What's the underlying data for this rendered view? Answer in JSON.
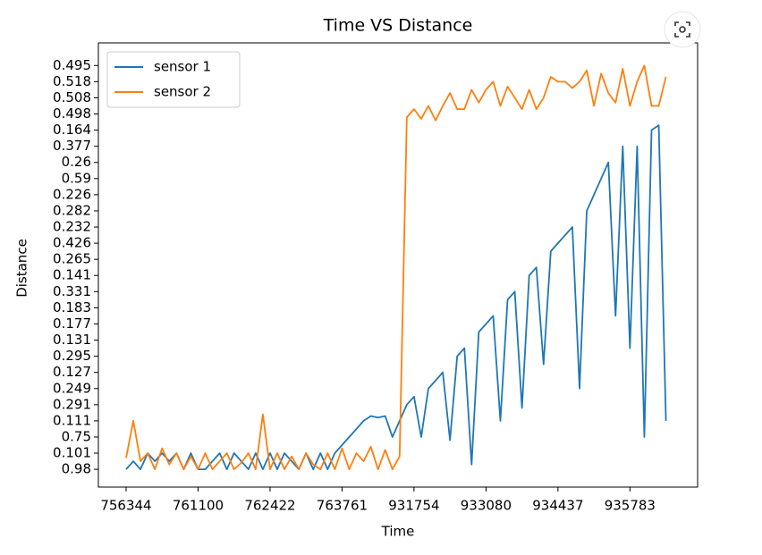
{
  "chart_data": {
    "type": "line",
    "title": "Time VS Distance",
    "xlabel": "Time",
    "ylabel": "Distance",
    "x": [
      0,
      2,
      4,
      6,
      8,
      10,
      12,
      14,
      16,
      18,
      20,
      22,
      24,
      26,
      28,
      30,
      32,
      34,
      36,
      38,
      40,
      42,
      44,
      46,
      48,
      50,
      52,
      54,
      56,
      58,
      60,
      62,
      64,
      66,
      68,
      70,
      72,
      74,
      76,
      78,
      80,
      82,
      84,
      86,
      88,
      90,
      92,
      94,
      96,
      98,
      100,
      102,
      104,
      106,
      108,
      110,
      112,
      114,
      116,
      118,
      120,
      122,
      124,
      126,
      128,
      130,
      132,
      134,
      136,
      138,
      140,
      142,
      144,
      146,
      148,
      150
    ],
    "series": [
      {
        "name": "sensor 1",
        "color": "#1f77b4",
        "values": [
          0,
          0.5,
          0,
          1,
          0.5,
          1,
          0.5,
          1,
          0,
          1,
          0,
          0,
          0.5,
          1,
          0,
          1,
          0.5,
          0,
          1,
          0,
          1,
          0,
          1,
          0.5,
          0,
          1,
          0,
          1,
          0,
          1,
          1.5,
          2,
          2.5,
          3,
          3.3,
          3.2,
          3.3,
          2,
          3,
          4,
          4.5,
          2,
          5,
          5.5,
          6,
          1.8,
          7,
          7.5,
          0.3,
          8.5,
          9,
          9.5,
          3,
          10.5,
          11,
          3.8,
          12,
          12.5,
          6.5,
          13.5,
          14,
          14.5,
          15,
          5,
          16,
          17,
          18,
          19,
          9.5,
          20,
          7.5,
          20,
          2,
          21,
          21.3,
          3
        ]
      },
      {
        "name": "sensor 2",
        "color": "#ff7f0e",
        "values": [
          0.7,
          3,
          0.5,
          1,
          0,
          1.3,
          0.3,
          1,
          0,
          0.8,
          0,
          1,
          0,
          0.5,
          1,
          0,
          0.4,
          1,
          0,
          3.4,
          0,
          1,
          0,
          0.8,
          0,
          1,
          0.3,
          0,
          1,
          0,
          1.3,
          0,
          1,
          0.5,
          1.4,
          0,
          1.2,
          0,
          0.8,
          21.8,
          22.3,
          21.7,
          22.5,
          21.6,
          22.5,
          23.3,
          22.3,
          22.3,
          23.5,
          22.7,
          23.5,
          24,
          22.5,
          23.7,
          23,
          22.3,
          23.5,
          22.3,
          23,
          24.3,
          24,
          24,
          23.6,
          24,
          24.7,
          22.5,
          24.5,
          23.3,
          22.7,
          24.8,
          22.5,
          24,
          25,
          22.5,
          22.5,
          24.3
        ]
      }
    ],
    "xlim": [
      -7.7,
      158.8
    ],
    "xticks": [
      {
        "value": 0,
        "label": "756344"
      },
      {
        "value": 20,
        "label": "761100"
      },
      {
        "value": 40,
        "label": "762422"
      },
      {
        "value": 60,
        "label": "763761"
      },
      {
        "value": 80,
        "label": "931754"
      },
      {
        "value": 100,
        "label": "933080"
      },
      {
        "value": 120,
        "label": "934437"
      },
      {
        "value": 140,
        "label": "935783"
      }
    ],
    "ylim": [
      -1.1,
      26.4
    ],
    "yticks": [
      {
        "value": 0,
        "label": "0.98"
      },
      {
        "value": 1,
        "label": "0.101"
      },
      {
        "value": 2,
        "label": "0.75"
      },
      {
        "value": 3,
        "label": "0.111"
      },
      {
        "value": 4,
        "label": "0.291"
      },
      {
        "value": 5,
        "label": "0.249"
      },
      {
        "value": 6,
        "label": "0.127"
      },
      {
        "value": 7,
        "label": "0.295"
      },
      {
        "value": 8,
        "label": "0.131"
      },
      {
        "value": 9,
        "label": "0.177"
      },
      {
        "value": 10,
        "label": "0.183"
      },
      {
        "value": 11,
        "label": "0.331"
      },
      {
        "value": 12,
        "label": "0.141"
      },
      {
        "value": 13,
        "label": "0.265"
      },
      {
        "value": 14,
        "label": "0.426"
      },
      {
        "value": 15,
        "label": "0.232"
      },
      {
        "value": 16,
        "label": "0.282"
      },
      {
        "value": 17,
        "label": "0.226"
      },
      {
        "value": 18,
        "label": "0.59"
      },
      {
        "value": 19,
        "label": "0.26"
      },
      {
        "value": 20,
        "label": "0.377"
      },
      {
        "value": 21,
        "label": "0.164"
      },
      {
        "value": 22,
        "label": "0.498"
      },
      {
        "value": 23,
        "label": "0.508"
      },
      {
        "value": 24,
        "label": "0.518"
      },
      {
        "value": 25,
        "label": "0.495"
      }
    ],
    "grid": false,
    "legend": "upper left"
  }
}
